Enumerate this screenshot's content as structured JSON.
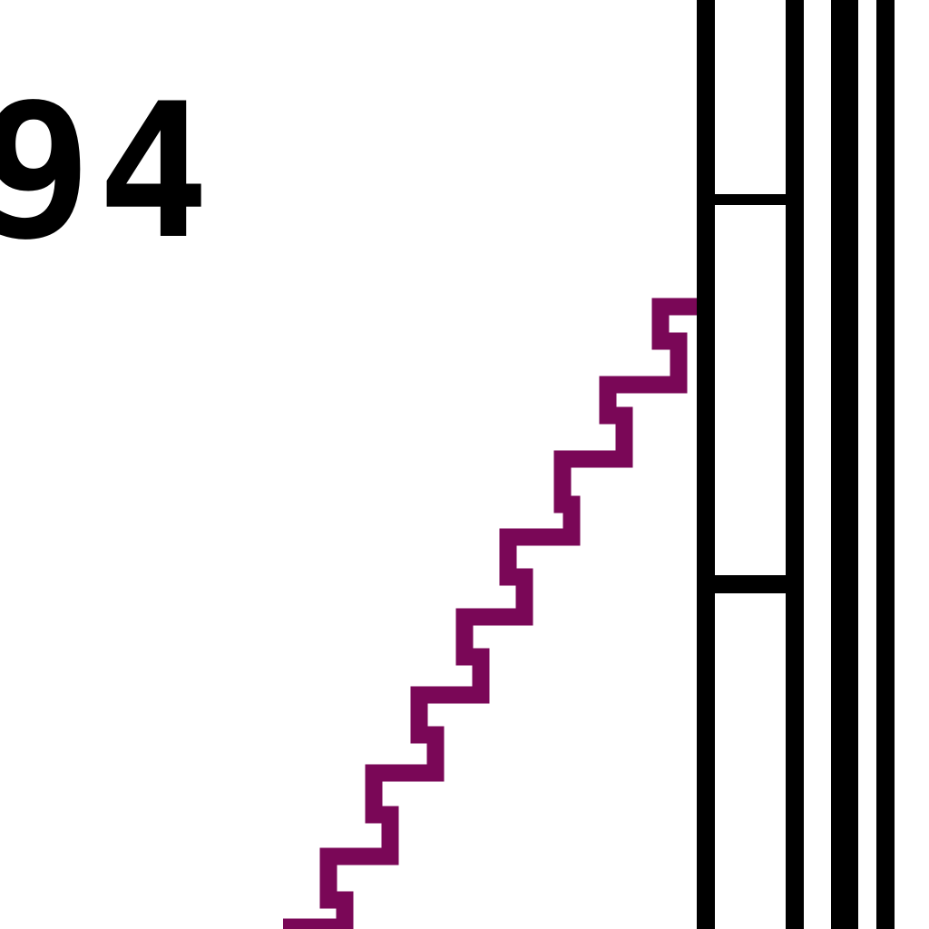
{
  "label": "94",
  "colors": {
    "background": "#ffffff",
    "ink": "#000000",
    "wavy_line": "#7a0757"
  }
}
